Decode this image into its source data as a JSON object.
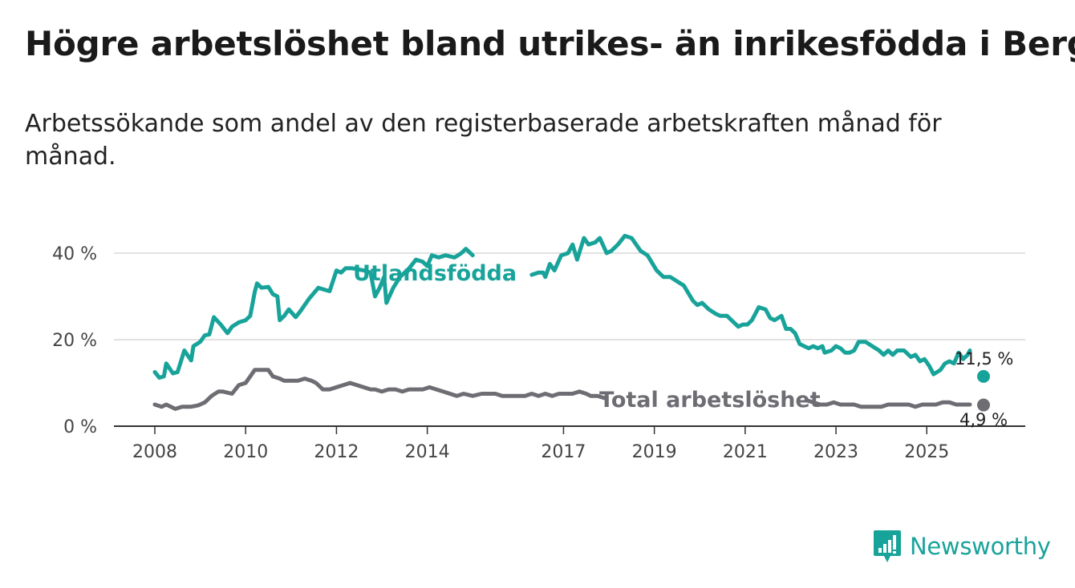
{
  "title": "Högre arbetslöshet bland utrikes- än inrikesfödda i Berg",
  "subtitle": "Arbetssökande som andel av den registerbaserade arbetskraften månad för månad.",
  "brand": {
    "name": "Newsworthy",
    "icon": "newsworthy-logo-icon"
  },
  "colors": {
    "foreign": "#18a39a",
    "total": "#6e6d73",
    "grid": "#d9d9d9",
    "axis": "#333333"
  },
  "chart_data": {
    "type": "line",
    "ylim": [
      0,
      40
    ],
    "yticks": [
      0,
      20,
      40
    ],
    "ytick_labels": [
      "0 %",
      "20 %",
      "40 %"
    ],
    "xlim": [
      2008,
      2026.4
    ],
    "xticks": [
      2008,
      2010,
      2012,
      2014,
      2017,
      2019,
      2021,
      2023,
      2025
    ],
    "xtick_labels": [
      "2008",
      "2010",
      "2012",
      "2014",
      "2017",
      "2019",
      "2021",
      "2023",
      "2025"
    ],
    "grid": true,
    "series": [
      {
        "name": "Utlandsfödda",
        "label": "Utlandsfödda",
        "end_label": "11,5 %",
        "end_value": 11.5,
        "points": [
          [
            2008.0,
            12.5
          ],
          [
            2008.1,
            11.2
          ],
          [
            2008.2,
            11.5
          ],
          [
            2008.25,
            14.5
          ],
          [
            2008.4,
            12.2
          ],
          [
            2008.5,
            12.5
          ],
          [
            2008.65,
            17.5
          ],
          [
            2008.8,
            15.2
          ],
          [
            2008.85,
            18.5
          ],
          [
            2009.0,
            19.5
          ],
          [
            2009.1,
            21.0
          ],
          [
            2009.2,
            21.2
          ],
          [
            2009.3,
            25.2
          ],
          [
            2009.45,
            23.5
          ],
          [
            2009.6,
            21.5
          ],
          [
            2009.7,
            23.0
          ],
          [
            2009.85,
            24.0
          ],
          [
            2010.0,
            24.5
          ],
          [
            2010.1,
            25.5
          ],
          [
            2010.2,
            31.0
          ],
          [
            2010.25,
            33.0
          ],
          [
            2010.35,
            32.0
          ],
          [
            2010.5,
            32.2
          ],
          [
            2010.6,
            30.5
          ],
          [
            2010.7,
            30.0
          ],
          [
            2010.75,
            24.5
          ],
          [
            2010.85,
            25.5
          ],
          [
            2010.95,
            27.0
          ],
          [
            2011.1,
            25.2
          ],
          [
            2011.2,
            26.5
          ],
          [
            2011.4,
            29.5
          ],
          [
            2011.6,
            32.0
          ],
          [
            2011.75,
            31.5
          ],
          [
            2011.85,
            31.2
          ],
          [
            2012.0,
            36.0
          ],
          [
            2012.1,
            35.5
          ],
          [
            2012.2,
            36.5
          ],
          [
            2012.35,
            36.5
          ],
          [
            2012.6,
            36.0
          ],
          [
            2012.75,
            35.5
          ],
          [
            2012.85,
            30.0
          ],
          [
            2012.95,
            32.0
          ],
          [
            2013.05,
            34.5
          ],
          [
            2013.1,
            28.5
          ],
          [
            2013.25,
            32.0
          ],
          [
            2013.4,
            34.5
          ],
          [
            2013.6,
            36.5
          ],
          [
            2013.75,
            38.5
          ],
          [
            2013.9,
            38.0
          ],
          [
            2014.0,
            37.0
          ],
          [
            2014.1,
            39.5
          ],
          [
            2014.25,
            39.0
          ],
          [
            2014.4,
            39.5
          ],
          [
            2014.6,
            39.0
          ],
          [
            2014.75,
            40.0
          ],
          [
            2014.85,
            41.0
          ],
          [
            2015.0,
            39.5
          ],
          [
            2016.3,
            35.0
          ],
          [
            2016.45,
            35.5
          ],
          [
            2016.55,
            35.5
          ],
          [
            2016.6,
            34.5
          ],
          [
            2016.7,
            37.5
          ],
          [
            2016.8,
            36.0
          ],
          [
            2016.95,
            39.5
          ],
          [
            2017.1,
            40.0
          ],
          [
            2017.2,
            42.0
          ],
          [
            2017.3,
            38.5
          ],
          [
            2017.45,
            43.5
          ],
          [
            2017.55,
            42.0
          ],
          [
            2017.7,
            42.5
          ],
          [
            2017.8,
            43.5
          ],
          [
            2017.95,
            40.0
          ],
          [
            2018.05,
            40.5
          ],
          [
            2018.2,
            42.0
          ],
          [
            2018.35,
            44.0
          ],
          [
            2018.5,
            43.5
          ],
          [
            2018.7,
            40.5
          ],
          [
            2018.85,
            39.5
          ],
          [
            2019.05,
            36.0
          ],
          [
            2019.2,
            34.5
          ],
          [
            2019.35,
            34.5
          ],
          [
            2019.5,
            33.5
          ],
          [
            2019.65,
            32.5
          ],
          [
            2019.85,
            29.0
          ],
          [
            2019.95,
            28.0
          ],
          [
            2020.05,
            28.5
          ],
          [
            2020.2,
            27.0
          ],
          [
            2020.35,
            26.0
          ],
          [
            2020.45,
            25.5
          ],
          [
            2020.6,
            25.5
          ],
          [
            2020.75,
            24.0
          ],
          [
            2020.85,
            23.0
          ],
          [
            2020.95,
            23.5
          ],
          [
            2021.05,
            23.5
          ],
          [
            2021.15,
            24.5
          ],
          [
            2021.3,
            27.5
          ],
          [
            2021.45,
            27.0
          ],
          [
            2021.55,
            25.0
          ],
          [
            2021.65,
            24.5
          ],
          [
            2021.8,
            25.5
          ],
          [
            2021.9,
            22.5
          ],
          [
            2022.0,
            22.5
          ],
          [
            2022.1,
            21.5
          ],
          [
            2022.2,
            19.0
          ],
          [
            2022.3,
            18.5
          ],
          [
            2022.4,
            18.0
          ],
          [
            2022.5,
            18.5
          ],
          [
            2022.6,
            18.0
          ],
          [
            2022.7,
            18.5
          ],
          [
            2022.75,
            17.0
          ],
          [
            2022.9,
            17.5
          ],
          [
            2023.0,
            18.5
          ],
          [
            2023.1,
            18.0
          ],
          [
            2023.2,
            17.0
          ],
          [
            2023.3,
            17.0
          ],
          [
            2023.4,
            17.5
          ],
          [
            2023.5,
            19.5
          ],
          [
            2023.65,
            19.5
          ],
          [
            2023.8,
            18.5
          ],
          [
            2023.95,
            17.5
          ],
          [
            2024.05,
            16.5
          ],
          [
            2024.15,
            17.5
          ],
          [
            2024.25,
            16.5
          ],
          [
            2024.35,
            17.5
          ],
          [
            2024.5,
            17.5
          ],
          [
            2024.65,
            16.0
          ],
          [
            2024.75,
            16.5
          ],
          [
            2024.85,
            15.0
          ],
          [
            2024.95,
            15.5
          ],
          [
            2025.05,
            14.0
          ],
          [
            2025.15,
            12.0
          ],
          [
            2025.3,
            13.0
          ],
          [
            2025.4,
            14.5
          ],
          [
            2025.5,
            15.0
          ],
          [
            2025.6,
            14.5
          ],
          [
            2025.7,
            17.0
          ],
          [
            2025.8,
            15.5
          ],
          [
            2025.9,
            16.5
          ],
          [
            2025.95,
            17.5
          ],
          [
            2026.25,
            11.5
          ]
        ]
      },
      {
        "name": "Total arbetslöshet",
        "label": "Total arbetslöshet",
        "end_label": "4,9 %",
        "end_value": 4.9,
        "points": [
          [
            2008.0,
            5.0
          ],
          [
            2008.15,
            4.5
          ],
          [
            2008.25,
            5.0
          ],
          [
            2008.45,
            4.0
          ],
          [
            2008.6,
            4.5
          ],
          [
            2008.8,
            4.5
          ],
          [
            2008.95,
            4.8
          ],
          [
            2009.1,
            5.5
          ],
          [
            2009.25,
            7.0
          ],
          [
            2009.4,
            8.0
          ],
          [
            2009.5,
            8.0
          ],
          [
            2009.7,
            7.5
          ],
          [
            2009.85,
            9.5
          ],
          [
            2010.0,
            10.0
          ],
          [
            2010.1,
            11.5
          ],
          [
            2010.2,
            13.0
          ],
          [
            2010.35,
            13.0
          ],
          [
            2010.5,
            13.0
          ],
          [
            2010.6,
            11.5
          ],
          [
            2010.75,
            11.0
          ],
          [
            2010.85,
            10.5
          ],
          [
            2011.0,
            10.5
          ],
          [
            2011.15,
            10.5
          ],
          [
            2011.3,
            11.0
          ],
          [
            2011.45,
            10.5
          ],
          [
            2011.55,
            10.0
          ],
          [
            2011.7,
            8.5
          ],
          [
            2011.85,
            8.5
          ],
          [
            2012.0,
            9.0
          ],
          [
            2012.15,
            9.5
          ],
          [
            2012.3,
            10.0
          ],
          [
            2012.45,
            9.5
          ],
          [
            2012.6,
            9.0
          ],
          [
            2012.75,
            8.5
          ],
          [
            2012.85,
            8.5
          ],
          [
            2013.0,
            8.0
          ],
          [
            2013.15,
            8.5
          ],
          [
            2013.3,
            8.5
          ],
          [
            2013.45,
            8.0
          ],
          [
            2013.6,
            8.5
          ],
          [
            2013.75,
            8.5
          ],
          [
            2013.9,
            8.5
          ],
          [
            2014.05,
            9.0
          ],
          [
            2014.2,
            8.5
          ],
          [
            2014.35,
            8.0
          ],
          [
            2014.5,
            7.5
          ],
          [
            2014.65,
            7.0
          ],
          [
            2014.8,
            7.5
          ],
          [
            2015.0,
            7.0
          ],
          [
            2015.2,
            7.5
          ],
          [
            2015.35,
            7.5
          ],
          [
            2015.5,
            7.5
          ],
          [
            2015.65,
            7.0
          ],
          [
            2015.8,
            7.0
          ],
          [
            2016.0,
            7.0
          ],
          [
            2016.15,
            7.0
          ],
          [
            2016.3,
            7.5
          ],
          [
            2016.45,
            7.0
          ],
          [
            2016.6,
            7.5
          ],
          [
            2016.75,
            7.0
          ],
          [
            2016.9,
            7.5
          ],
          [
            2017.05,
            7.5
          ],
          [
            2017.2,
            7.5
          ],
          [
            2017.35,
            8.0
          ],
          [
            2017.5,
            7.5
          ],
          [
            2017.6,
            7.0
          ],
          [
            2017.75,
            7.0
          ],
          [
            2017.9,
            6.5
          ],
          [
            2022.35,
            6.0
          ],
          [
            2022.5,
            5.5
          ],
          [
            2022.65,
            5.0
          ],
          [
            2022.8,
            5.0
          ],
          [
            2022.95,
            5.5
          ],
          [
            2023.1,
            5.0
          ],
          [
            2023.25,
            5.0
          ],
          [
            2023.4,
            5.0
          ],
          [
            2023.55,
            4.5
          ],
          [
            2023.7,
            4.5
          ],
          [
            2023.85,
            4.5
          ],
          [
            2024.0,
            4.5
          ],
          [
            2024.15,
            5.0
          ],
          [
            2024.3,
            5.0
          ],
          [
            2024.45,
            5.0
          ],
          [
            2024.6,
            5.0
          ],
          [
            2024.75,
            4.5
          ],
          [
            2024.9,
            5.0
          ],
          [
            2025.05,
            5.0
          ],
          [
            2025.2,
            5.0
          ],
          [
            2025.35,
            5.5
          ],
          [
            2025.5,
            5.5
          ],
          [
            2025.65,
            5.0
          ],
          [
            2025.8,
            5.0
          ],
          [
            2025.95,
            5.0
          ],
          [
            2026.25,
            4.9
          ]
        ]
      }
    ]
  }
}
